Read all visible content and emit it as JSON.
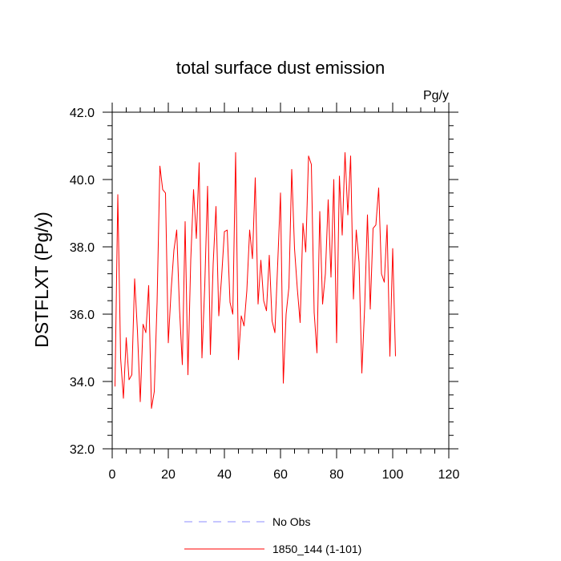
{
  "chart_data": {
    "type": "line",
    "title": "total surface dust emission",
    "units_label": "Pg/y",
    "ylabel": "DSTFLXT  (Pg/y)",
    "xlabel": "",
    "xlim": [
      0,
      120
    ],
    "ylim": [
      32,
      42
    ],
    "xticks": [
      0,
      20,
      40,
      60,
      80,
      100,
      120
    ],
    "yticks": [
      32.0,
      34.0,
      36.0,
      38.0,
      40.0,
      42.0
    ],
    "ytick_labels": [
      "32.0",
      "34.0",
      "36.0",
      "38.0",
      "40.0",
      "42.0"
    ],
    "grid": false,
    "legend_placement": "bottom-center",
    "legend": [
      {
        "name": "No Obs",
        "style": "dashed",
        "color": "#8c8cff"
      },
      {
        "name": "1850_144 (1-101)",
        "style": "solid",
        "color": "#ff0000"
      }
    ],
    "series": [
      {
        "name": "1850_144 (1-101)",
        "color": "#ff0000",
        "x": [
          1,
          2,
          3,
          4,
          5,
          6,
          7,
          8,
          9,
          10,
          11,
          12,
          13,
          14,
          15,
          16,
          17,
          18,
          19,
          20,
          21,
          22,
          23,
          24,
          25,
          26,
          27,
          28,
          29,
          30,
          31,
          32,
          33,
          34,
          35,
          36,
          37,
          38,
          39,
          40,
          41,
          42,
          43,
          44,
          45,
          46,
          47,
          48,
          49,
          50,
          51,
          52,
          53,
          54,
          55,
          56,
          57,
          58,
          59,
          60,
          61,
          62,
          63,
          64,
          65,
          66,
          67,
          68,
          69,
          70,
          71,
          72,
          73,
          74,
          75,
          76,
          77,
          78,
          79,
          80,
          81,
          82,
          83,
          84,
          85,
          86,
          87,
          88,
          89,
          90,
          91,
          92,
          93,
          94,
          95,
          96,
          97,
          98,
          99,
          100,
          101
        ],
        "values": [
          33.85,
          39.55,
          34.7,
          33.5,
          35.3,
          34.05,
          34.2,
          37.05,
          35.5,
          33.4,
          35.7,
          35.45,
          36.85,
          33.2,
          33.7,
          36.35,
          40.4,
          39.7,
          39.6,
          35.15,
          36.7,
          37.9,
          38.5,
          36.15,
          34.5,
          38.75,
          34.2,
          37.6,
          39.7,
          38.25,
          40.5,
          34.7,
          36.85,
          39.8,
          34.8,
          37.5,
          39.2,
          35.95,
          37.1,
          38.45,
          38.5,
          36.35,
          36.0,
          40.8,
          34.65,
          35.95,
          35.65,
          36.7,
          38.5,
          37.65,
          40.05,
          36.3,
          37.6,
          36.4,
          36.1,
          37.75,
          35.8,
          35.45,
          37.5,
          39.6,
          33.95,
          36.0,
          36.8,
          40.3,
          37.95,
          36.75,
          35.75,
          38.7,
          37.85,
          40.7,
          40.45,
          36.05,
          34.85,
          39.05,
          36.3,
          37.2,
          39.4,
          37.1,
          40.0,
          35.15,
          40.1,
          38.35,
          40.8,
          38.95,
          40.7,
          36.45,
          38.5,
          37.55,
          34.25,
          36.2,
          38.95,
          36.15,
          38.55,
          38.65,
          39.75,
          37.2,
          36.95,
          38.65,
          34.75,
          37.95,
          34.75
        ]
      }
    ]
  }
}
